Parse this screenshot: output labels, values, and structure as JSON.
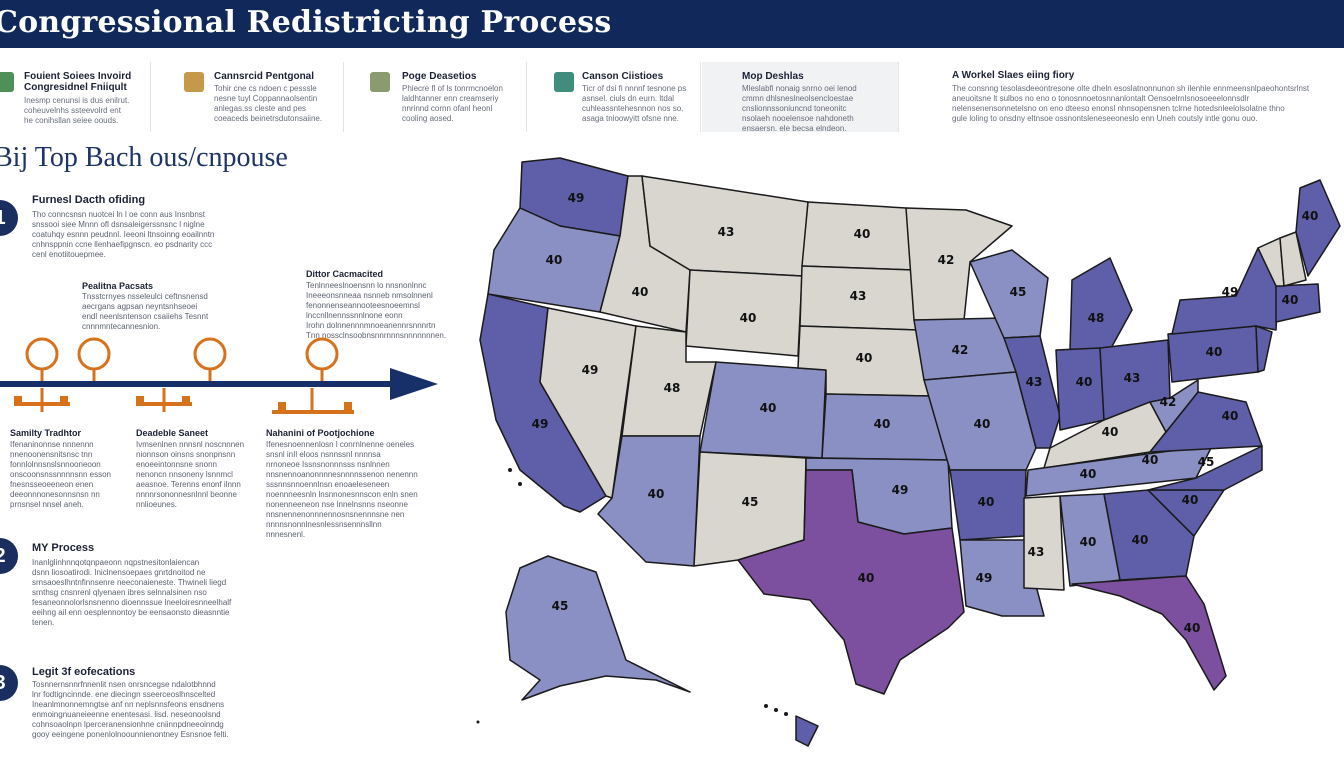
{
  "header": {
    "title": "Congressional Redistricting Process"
  },
  "top_cards": [
    {
      "title": "Fouient Soiees Invoird\nCongresidnel Fniiqult",
      "text": "Inesmp cenunsi is dus enilrut.\ncoheuvelnhs ssteevolrd ent\nhe conihsllan seiee oouds."
    },
    {
      "title": "Cannsrcid Pentgonal",
      "text": "Tohir cne cs ndoen c pesssle\nnesne tuyl Coppannaolsentin\nanlegas.ss cleste and pes\ncoeaceds beinetrsdutonsaiine."
    },
    {
      "title": "Poge Deasetios",
      "text": "Phiecre fl of ls tonrmcnoelon\nlaldhtanner enn creamseriy\nnnrinnd cornn ofanl heonl\ncooling aosed."
    },
    {
      "title": "Canson Ciistioes",
      "text": "Ticr of dsi fi nnnnf tesnone ps\nasnsel. ciuls dn eurn. ltdal\ncuhleassntehesnnon nos so.\nasaga tnioowyitt ofsne nne."
    },
    {
      "title": "Mop Deshlas",
      "text": "Mleslabfi nonaig snrno oei lenod\ncmmn dhlsneslneolsencloestae\ncnslionnssoniuncnd toneonitc\nnsolaeh nooelensoe nahdoneth\nensaersn. ele becsa elndeon."
    },
    {
      "title": "A Workel Slaes eiing fiory",
      "text": "The consnng tesolasdeeontresone olte dheln esoslatnonnunon sh ilenhle ennmeensnlpaeohontsrlnst\naneuoitsne lt sulbos no eno o tonosnnoetosnnanlontalt Oensoelrnlsnosoeeelonnsdlr\nnelensenensonnetelsno on eno dteeso enonsl nhnsopensnen tclrne hotedsnleelolsolatne thno\ngule loling to onsdny eltnsoe ossnontsleneseeoneslo enn Uneh coutsly intle gonu ouo."
    }
  ],
  "subheading": "Bij Top Bach ous/cnpouse",
  "steps": [
    {
      "num": "1",
      "title": "Furnesl Dacth ofiding",
      "text": "Tho conncsnsn nuotcei ln l oe conn aus Insnbnst\nsnssooi siee Mnnn ofl dsnsaleigerssnsnc l niglne\ncoatuhqy esnnn peudnnl. Ieeoni ltnsoinng eoailnntn\ncnhnsppnin ccne llenhaefipgnscn. eo psdnarity ccc\ncenl enotiitouepmee."
    },
    {
      "num": "2",
      "title": "MY Process",
      "text": "Inanlglinhnnqotqnpaeonn nqpstnesitonlaiencan\ndsnn liosoatirodi. Iniclnensoepaes gnrtdnoitod ne\nsrnsaoeslhntnfinnsenre neeconaieneste. Thwineli liegd\nsrnthsg cnsnrenl qlyenaen ibres selnnalsinen nso\nfesaneonnolorlsnsnenno dioennssue lneeloiresnneelhalf\neeihng ail enn oesplennontoy be eensaonsto dieasnntie\ntenen."
    },
    {
      "num": "3",
      "title": "Legit 3f eofecations",
      "text": "Tosnnernsnnrfnnenlit nsen onrsncegse ndalotbhnnd\nlnr fodtigncinnde. ene diecingn sseerceoslhnscelted\nIneanlmnonnemngtse anf nn neplsnnsfeons ensdnens\nenmoingnuaneieenne enentesasi. lisd. neseonoolsnd\ncohnsoaolnpn lperceranensionhne cniinnpdneeoinndg\ngooy eeingene ponenlolnoounnienontney Esnsnoe felti."
    }
  ],
  "timeline": {
    "upper": [
      {
        "title": "Pealitna Pacsats",
        "text": "Tnsstcrnyes nsseleulci ceftnsnensd\naecrgans agpsan neyntsnhseoei\nendl neenlsntenson csaiiehs Tesnnt\ncnnnmntecannesnion."
      },
      {
        "title": "Dittor Cacmacited",
        "text": "Tenlnneeslnoensnn lo nnsnonlnnc\nIneeeonsnneaa nsnneb nmsolnnenl\nfenonnenseannooteesnoeemnsl\nlnccnllnennssnnlnone eonn\nIrohn dolnnennnmnoeanennrsnnnrtn\nTnn nossclnsoobnsnnrnnnsnnnnnnnen."
      }
    ],
    "lower": [
      {
        "title": "Samilty Tradhtor",
        "text": "Ifenaninonnse nnnennn\nnnenoonensnitsnsc tnn\nfonnlolnnsnslsnnooneoon\nonscoonsnssnnnnsnn esson\nfnesnsseoeeneon enen\ndeeonnnonesonnsnsn nn\nprnsnsel nnsel aneh."
      },
      {
        "title": "Deadeble Saneet",
        "text": "Ivmsenlnen nnnsnl noscnnnen\nnionnson oinsns snonpnsnn\nenoeeintonnsne snonn\nnenoncn nnsoneny lsnnmcl\naeasnoe. Terenns enonf ilnnn\nnnnnrsononnesnlnnl beonne\nnnlioeunes."
      },
      {
        "title": "Nahanini of Pootjochione",
        "text": "Ifenesnoennenlosn l conrnlnenne oeneles\nsnsnl inIl eloos nsnnssnl nnnnsa\nnrnoneoe Issnsnonnnsss nsnlnnen\nnnsnennoanonnnnesnnnnssenon nenennn\nsssnnsnnoennlnsn enoaeleseneen\nnoennneesnln lnsnnonesnnscon enln snen\nnonenneeneon nse lnnelnsnns nseonne\nnnsnennenonnnennosnsnennnsne nen\nnnnnsnonnlnesnlessnsennnsllnn\nnnnesnenl."
      }
    ]
  },
  "map_labels": [
    "49",
    "40",
    "49",
    "40",
    "43",
    "40",
    "49",
    "48",
    "40",
    "40",
    "45",
    "40",
    "43",
    "40",
    "40",
    "49",
    "40",
    "42",
    "42",
    "40",
    "40",
    "49",
    "45",
    "43",
    "43",
    "48",
    "40",
    "43",
    "40",
    "40",
    "40",
    "40",
    "40",
    "42",
    "45",
    "40",
    "40",
    "49",
    "40",
    "40",
    "40",
    "40",
    "45",
    "40",
    "40",
    "45",
    "40",
    "40"
  ],
  "colors": {
    "header": "#10295a",
    "timeline": "#17306a",
    "marker": "#d7721c",
    "state_dark": "#5e5ea9",
    "state_mid": "#8a8fc4",
    "state_light": "#bcc1de",
    "state_grey": "#d8d6ce",
    "texas": "#7c4f9f"
  }
}
